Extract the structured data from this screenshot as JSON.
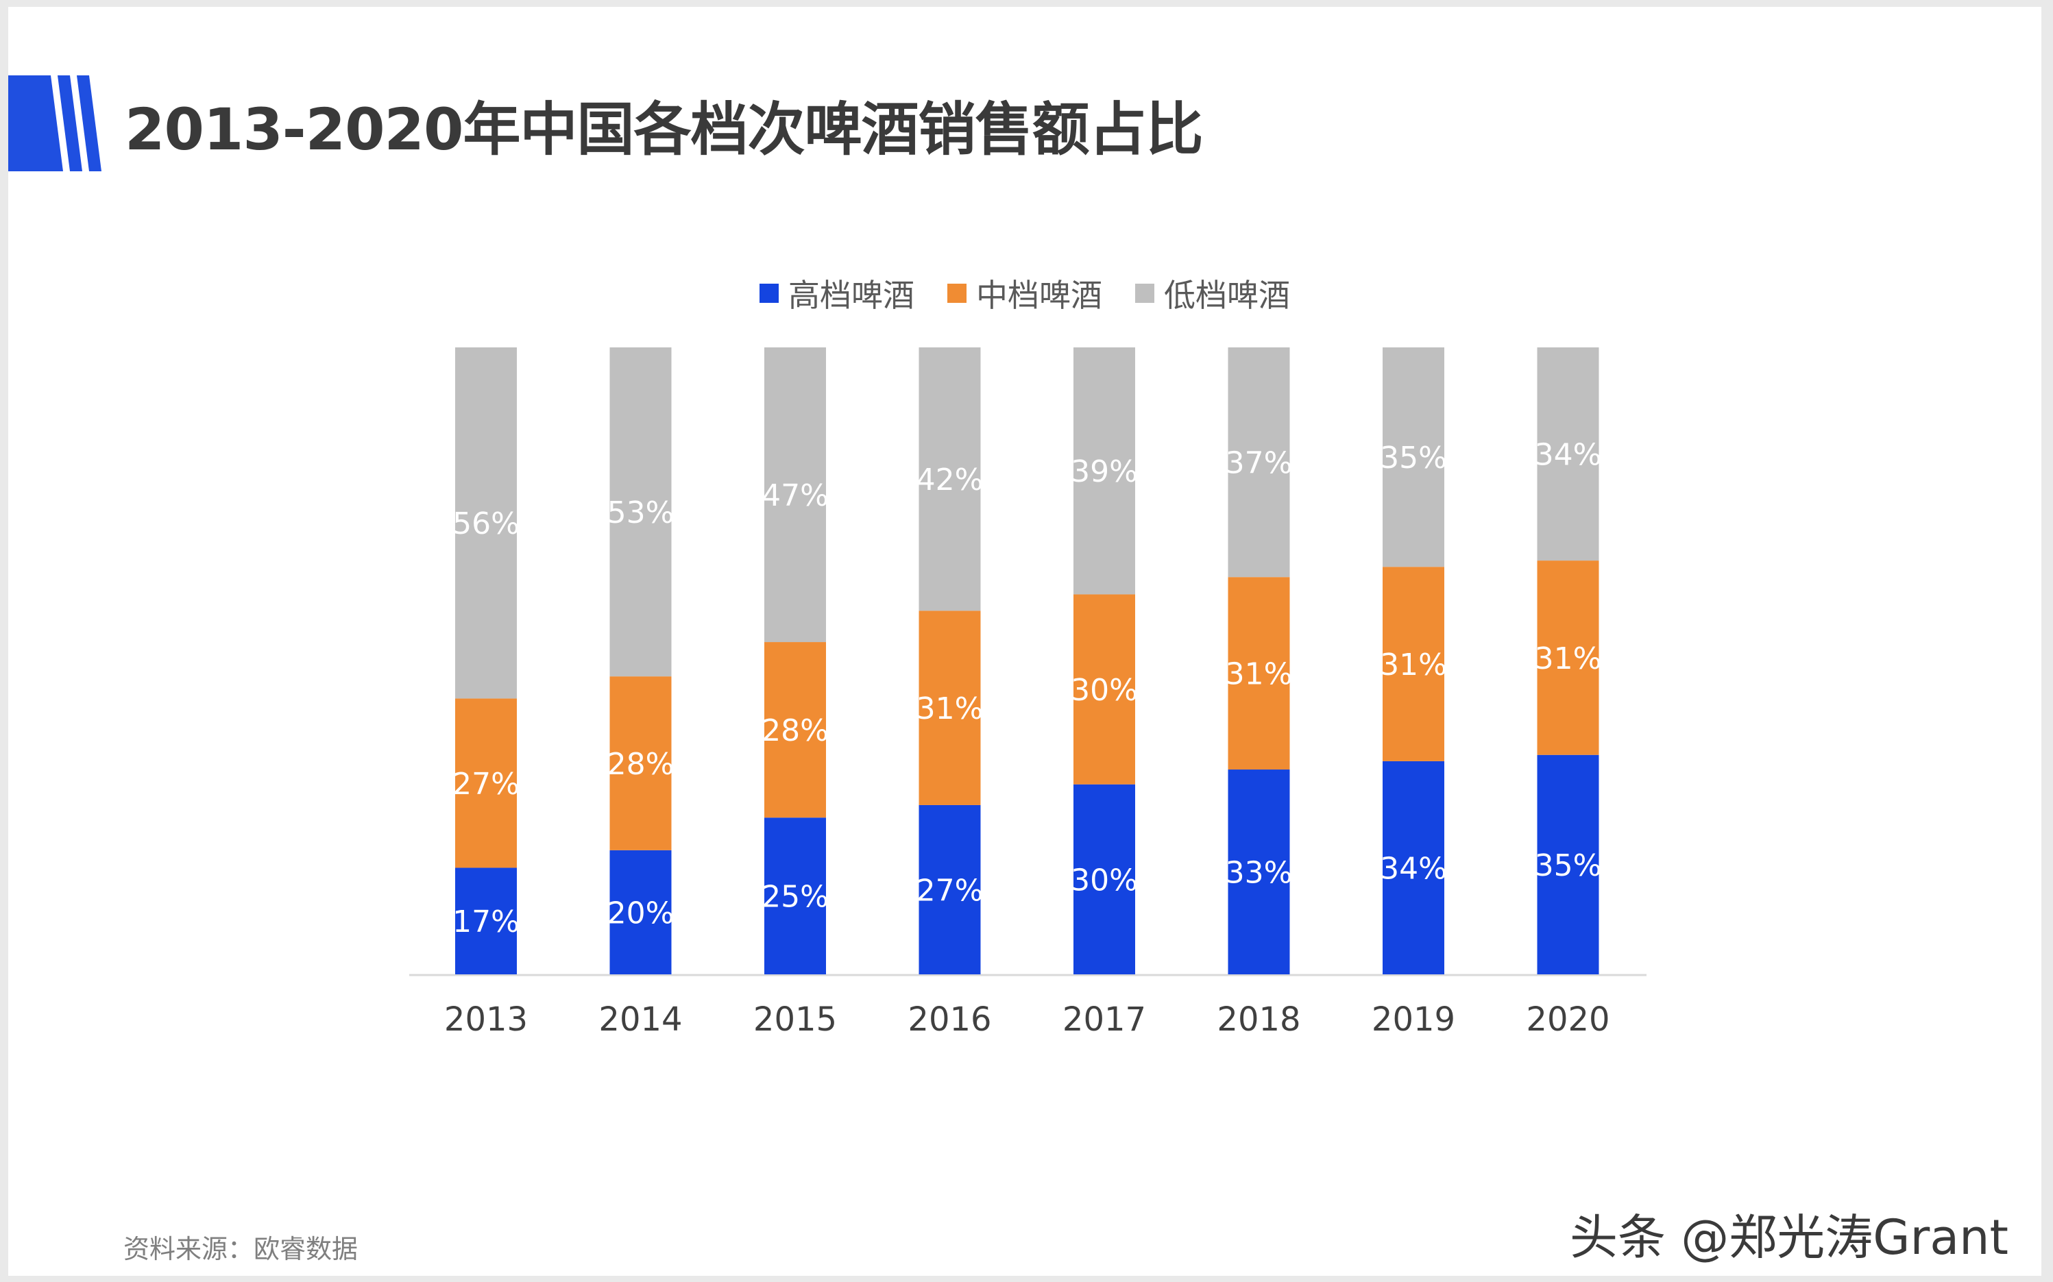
{
  "title": "2013-2020年中国各档次啤酒销售额占比",
  "source": "资料来源：欧睿数据",
  "watermark": "头条 @郑光涛Grant",
  "colors": {
    "title_deco": "#1f4fe0",
    "high": "#1444e0",
    "mid": "#f08c33",
    "low": "#bfbfbf",
    "label": "#ffffff",
    "axis": "#d9d9d9",
    "tick": "#404040"
  },
  "chart_data": {
    "type": "bar",
    "stacked": true,
    "normalized_100": true,
    "categories": [
      "2013",
      "2014",
      "2015",
      "2016",
      "2017",
      "2018",
      "2019",
      "2020"
    ],
    "series": [
      {
        "name": "高档啤酒",
        "values": [
          17,
          20,
          25,
          27,
          30,
          33,
          34,
          35
        ],
        "color": "#1444e0"
      },
      {
        "name": "中档啤酒",
        "values": [
          27,
          28,
          28,
          31,
          30,
          31,
          31,
          31
        ],
        "color": "#f08c33"
      },
      {
        "name": "低档啤酒",
        "values": [
          56,
          53,
          47,
          42,
          39,
          37,
          35,
          34
        ],
        "color": "#bfbfbf"
      }
    ],
    "value_suffix": "%",
    "legend_position": "top-center",
    "grid": false
  }
}
